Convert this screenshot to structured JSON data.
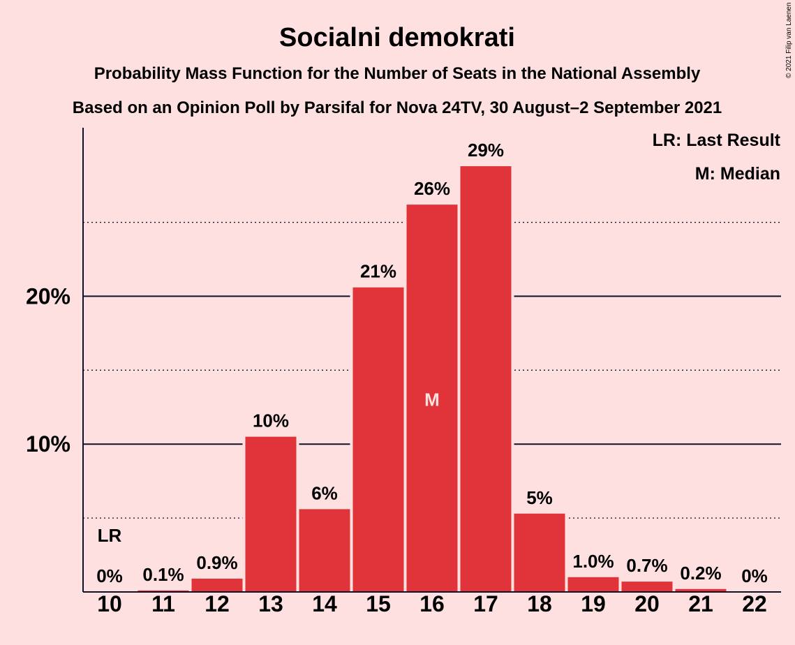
{
  "chart_data": {
    "type": "bar",
    "title": "Socialni demokrati",
    "subtitle1": "Probability Mass Function for the Number of Seats in the National Assembly",
    "subtitle2": "Based on an Opinion Poll by Parsifal for Nova 24TV, 30 August–2 September 2021",
    "categories": [
      "10",
      "11",
      "12",
      "13",
      "14",
      "15",
      "16",
      "17",
      "18",
      "19",
      "20",
      "21",
      "22"
    ],
    "values": [
      0,
      0.1,
      0.9,
      10.5,
      5.6,
      20.6,
      26.2,
      28.8,
      5.3,
      1.0,
      0.7,
      0.2,
      0
    ],
    "labels": [
      "0%",
      "0.1%",
      "0.9%",
      "10%",
      "6%",
      "21%",
      "26%",
      "29%",
      "5%",
      "1.0%",
      "0.7%",
      "0.2%",
      "0%"
    ],
    "y_ticks": [
      {
        "value": 10,
        "label": "10%"
      },
      {
        "value": 20,
        "label": "20%"
      }
    ],
    "minor_gridlines": [
      5,
      15,
      25
    ],
    "ylim": [
      0,
      31.4
    ],
    "last_result_category": "10",
    "last_result_marker": "LR",
    "median_category": "16",
    "median_marker": "M",
    "legend": [
      "LR: Last Result",
      "M: Median"
    ],
    "legend_position": "top-right",
    "copyright": "© 2021 Filip van Laenen",
    "colors": {
      "bar": "#E0333A",
      "background": "#FFE0E0",
      "text": "#0e1228",
      "median_marker": "#FFE0E0"
    }
  }
}
